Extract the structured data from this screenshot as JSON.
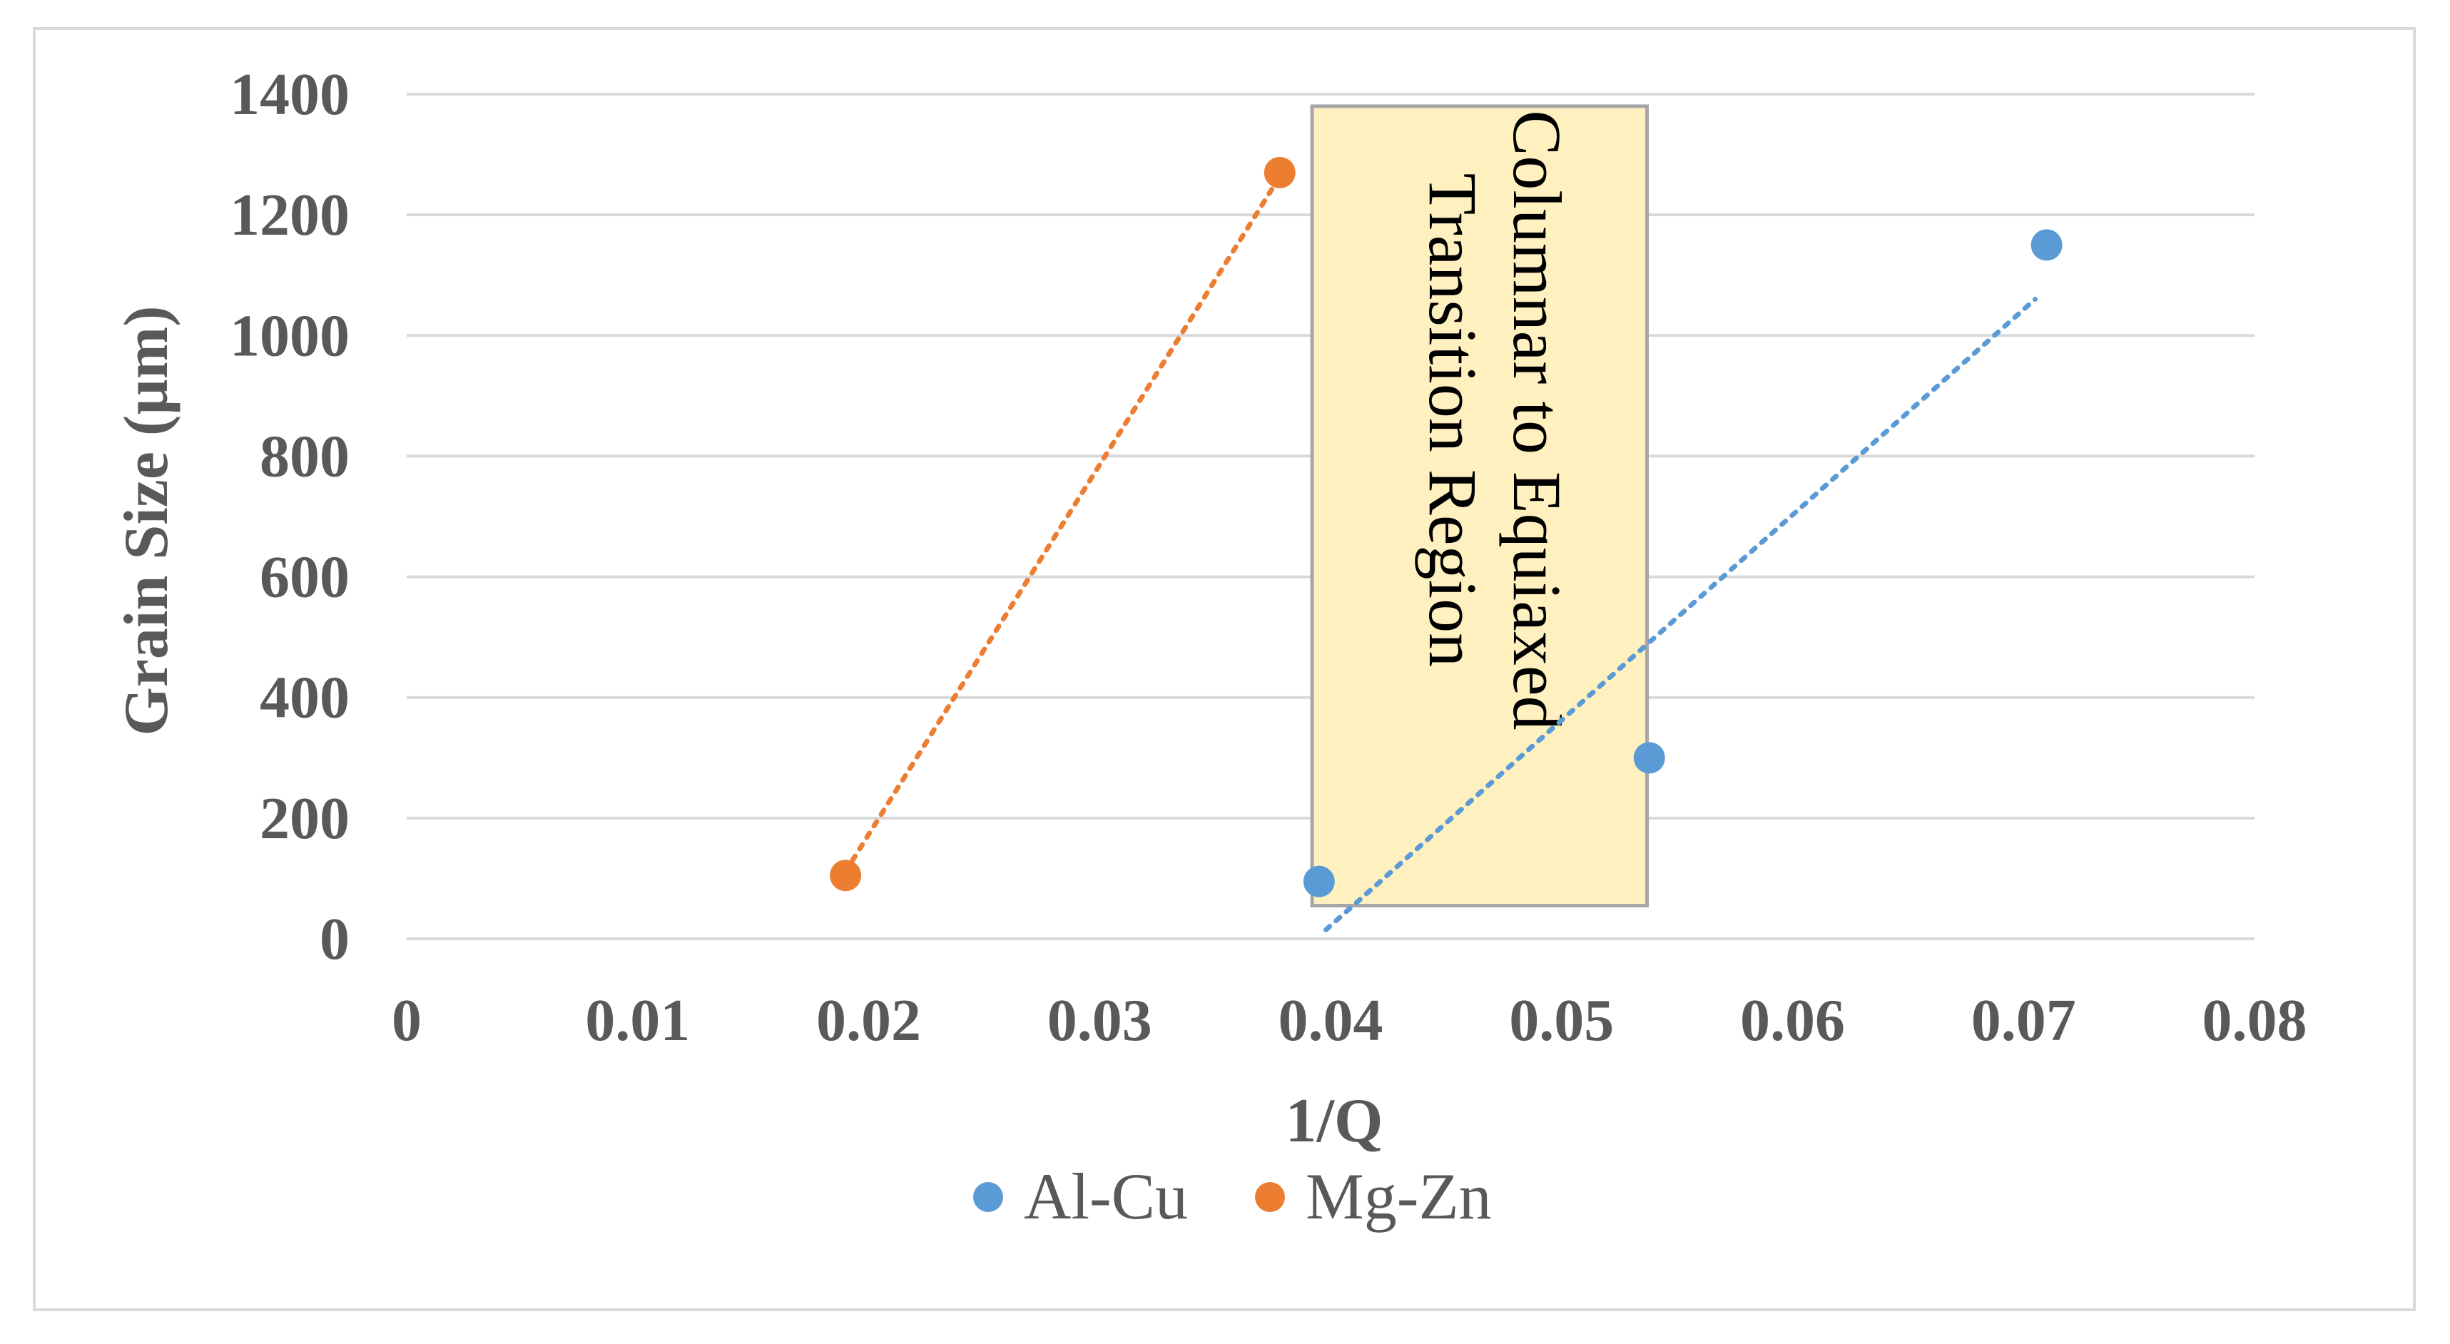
{
  "chart_data": {
    "type": "scatter",
    "title": "",
    "xlabel": "1/Q",
    "ylabel": "Grain Size (µm)",
    "xlim": [
      0,
      0.08
    ],
    "ylim": [
      0,
      1400
    ],
    "x_ticks": [
      "0",
      "0.01",
      "0.02",
      "0.03",
      "0.04",
      "0.05",
      "0.06",
      "0.07",
      "0.08"
    ],
    "y_ticks": [
      "0",
      "200",
      "400",
      "600",
      "800",
      "1000",
      "1200",
      "1400"
    ],
    "grid": "horizontal",
    "legend_position": "bottom",
    "series": [
      {
        "name": "Al-Cu",
        "color": "#5b9bd5",
        "points": [
          [
            0.0395,
            95
          ],
          [
            0.0538,
            300
          ],
          [
            0.071,
            1150
          ]
        ],
        "trendline": {
          "style": "dotted",
          "from": [
            0.0398,
            15
          ],
          "to": [
            0.0705,
            1060
          ]
        }
      },
      {
        "name": "Mg-Zn",
        "color": "#ed7d31",
        "points": [
          [
            0.019,
            105
          ],
          [
            0.0378,
            1270
          ]
        ],
        "trendline": {
          "style": "dotted",
          "from": [
            0.0193,
            130
          ],
          "to": [
            0.0375,
            1245
          ]
        }
      }
    ],
    "annotations": [
      {
        "type": "region",
        "x_range": [
          0.0392,
          0.0537
        ],
        "y_range": [
          55,
          1380
        ],
        "fill": "#fff0c0",
        "text_lines": [
          "Columnar to Equiaxed",
          "Transition  Region"
        ]
      }
    ]
  }
}
